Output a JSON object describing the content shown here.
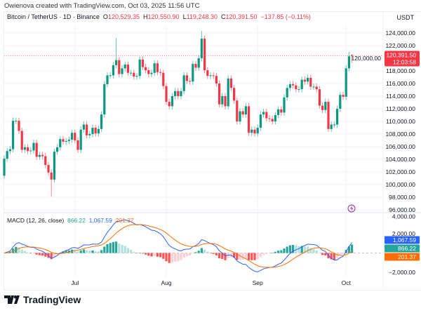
{
  "header": {
    "credit": "Owienova created with TradingView.com, Oct 03, 2025 11:56 UTC"
  },
  "ticker": {
    "symbol": "Bitcoin / TetherUS · 1D · Binance",
    "o_label": "O",
    "o": "120,529.35",
    "h_label": "H",
    "h": "120,550.90",
    "l_label": "L",
    "l": "119,248.30",
    "c_label": "C",
    "c": "120,391.50",
    "change": "−137.85 (−0.11%)"
  },
  "price_axis": {
    "currency": "USDT",
    "ticks": [
      "124,000.00",
      "122,000.00",
      "120,000.00",
      "118,000.00",
      "116,000.00",
      "114,000.00",
      "112,000.00",
      "110,000.00",
      "108,000.00",
      "106,000.00",
      "104,000.00",
      "102,000.00",
      "100,000.00",
      "98,000.00",
      "96,000.00"
    ],
    "last_price": "120,391.50",
    "countdown": "12:03:58"
  },
  "macd": {
    "title": "MACD (12, 26, close)",
    "histogram": "866.22",
    "macd": "1,067.59",
    "signal": "201.37",
    "ticks": [
      "4,000.00",
      "2,000.00",
      "−2,000.00"
    ]
  },
  "time_axis": [
    "Jul",
    "Aug",
    "Sep",
    "Oct"
  ],
  "brand": {
    "name": "TradingView"
  },
  "colors": {
    "up": "#089981",
    "down": "#f23645",
    "macd_line": "#2962ff",
    "signal_line": "#ff6d00",
    "hist_up_strong": "#26a69a",
    "hist_up_weak": "#b2dfdb",
    "hist_down_strong": "#ff5252",
    "hist_down_weak": "#ffcdd2",
    "alert_icon": "#9c27b0"
  },
  "chart_data": {
    "type": "candlestick",
    "title": "Bitcoin / TetherUS · 1D · Binance",
    "ylim": [
      96000,
      124000
    ],
    "x_ticks": [
      "Jul",
      "Aug",
      "Sep",
      "Oct"
    ],
    "first_date": "2025-06-07",
    "last_date": "2025-10-03",
    "open_first": 101400,
    "closes": [
      104100,
      105300,
      105600,
      110100,
      110100,
      108500,
      105500,
      105900,
      105300,
      105400,
      106600,
      104400,
      104700,
      104500,
      103100,
      101900,
      100800,
      105200,
      105900,
      107200,
      106800,
      106900,
      107100,
      108200,
      107000,
      105500,
      108700,
      109500,
      107800,
      108000,
      109000,
      108100,
      108800,
      111100,
      115900,
      117300,
      117300,
      118900,
      119700,
      117500,
      118400,
      119000,
      117700,
      117700,
      117100,
      117200,
      119800,
      118600,
      118100,
      117500,
      117700,
      119200,
      117800,
      117700,
      115600,
      113100,
      112400,
      114000,
      114800,
      114000,
      114800,
      117300,
      116400,
      116300,
      119100,
      118500,
      120000,
      123100,
      118100,
      117200,
      117300,
      117200,
      116000,
      112700,
      114000,
      112400,
      116800,
      115300,
      113300,
      110000,
      111600,
      111100,
      112400,
      108200,
      108700,
      108100,
      109000,
      111100,
      111500,
      110500,
      110400,
      110000,
      111000,
      111900,
      111400,
      113800,
      115300,
      115900,
      115700,
      115100,
      115100,
      116600,
      116300,
      116900,
      115500,
      115500,
      115100,
      112500,
      111800,
      113100,
      108800,
      109500,
      109500,
      112000,
      114200,
      113900,
      118400,
      120300,
      120391.5
    ],
    "notable_highs": {
      "38": 123200,
      "67": 124300,
      "117": 121000,
      "118": 120550.9
    },
    "notable_lows": {
      "16": 98100,
      "118": 119248.3
    }
  }
}
